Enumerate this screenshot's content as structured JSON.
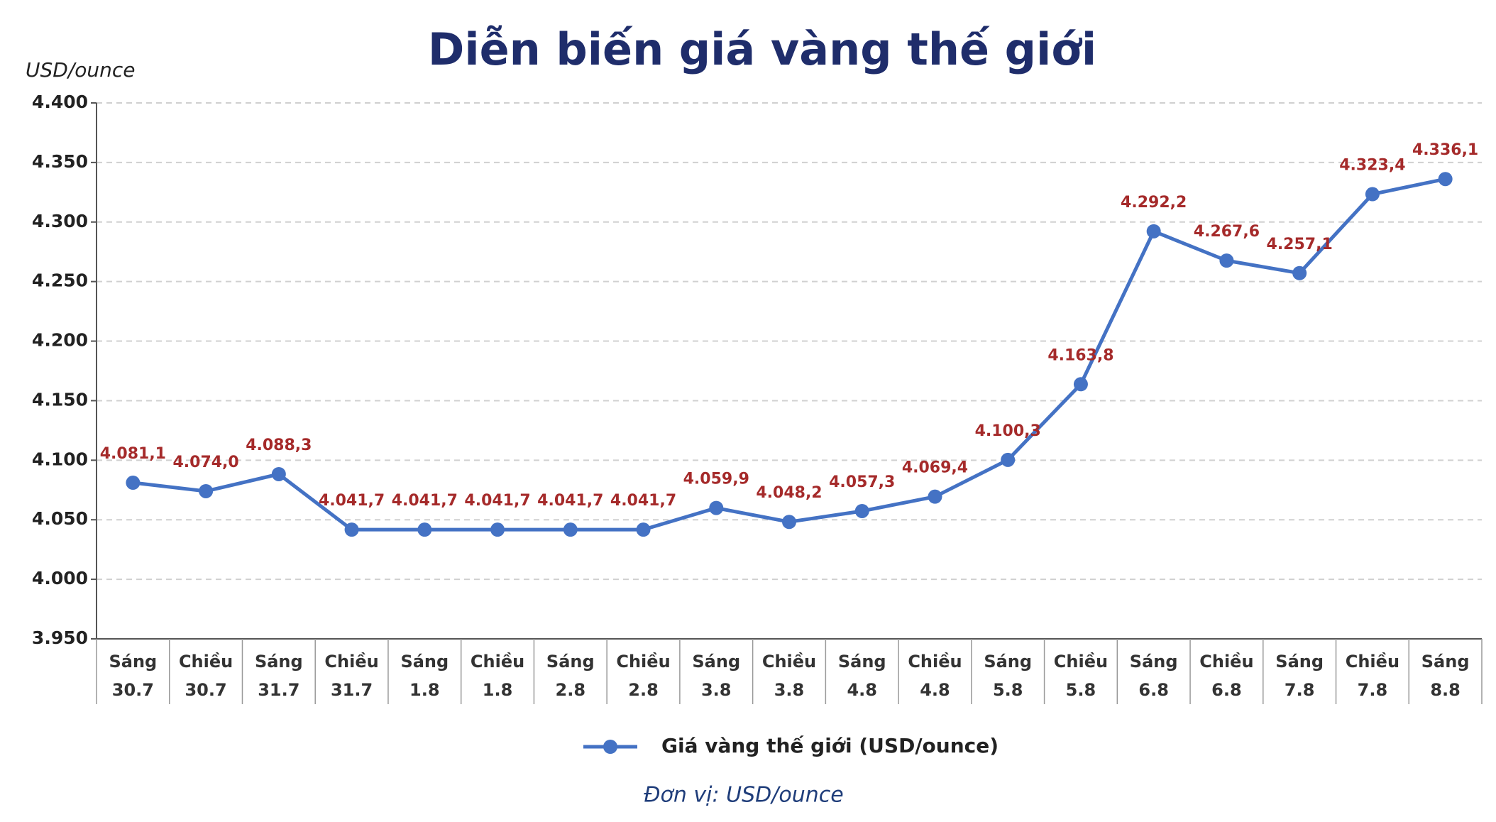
{
  "chart_data": {
    "type": "line",
    "title": "Diễn biến giá vàng thế giới",
    "y_label": "USD/ounce",
    "footnote": "Đơn vị: USD/ounce",
    "categories": [
      "Sáng\n30.7",
      "Chiều\n30.7",
      "Sáng\n31.7",
      "Chiều\n31.7",
      "Sáng\n1.8",
      "Chiều\n1.8",
      "Sáng\n2.8",
      "Chiều\n2.8",
      "Sáng\n3.8",
      "Chiều\n3.8",
      "Sáng\n4.8",
      "Chiều\n4.8",
      "Sáng\n5.8",
      "Chiều\n5.8",
      "Sáng\n6.8",
      "Chiều\n6.8",
      "Sáng\n7.8",
      "Chiều\n7.8",
      "Sáng\n8.8"
    ],
    "series": [
      {
        "name": "Giá vàng thế giới (USD/ounce)",
        "color": "#4472c4",
        "values": [
          4081.1,
          4074.0,
          4088.3,
          4041.7,
          4041.7,
          4041.7,
          4041.7,
          4041.7,
          4059.9,
          4048.2,
          4057.3,
          4069.4,
          4100.3,
          4163.8,
          4292.2,
          4267.6,
          4257.1,
          4323.4,
          4336.1
        ],
        "value_labels": [
          "4.081,1",
          "4.074,0",
          "4.088,3",
          "4.041,7",
          "4.041,7",
          "4.041,7",
          "4.041,7",
          "4.041,7",
          "4.059,9",
          "4.048,2",
          "4.057,3",
          "4.069,4",
          "4.100,3",
          "4.163,8",
          "4.292,2",
          "4.267,6",
          "4.257,1",
          "4.323,4",
          "4.336,1"
        ]
      }
    ],
    "ylim": [
      3950,
      4400
    ],
    "yticks": [
      {
        "value": 3950,
        "label": "3.950"
      },
      {
        "value": 4000,
        "label": "4.000"
      },
      {
        "value": 4050,
        "label": "4.050"
      },
      {
        "value": 4100,
        "label": "4.100"
      },
      {
        "value": 4150,
        "label": "4.150"
      },
      {
        "value": 4200,
        "label": "4.200"
      },
      {
        "value": 4250,
        "label": "4.250"
      },
      {
        "value": 4300,
        "label": "4.300"
      },
      {
        "value": 4350,
        "label": "4.350"
      },
      {
        "value": 4400,
        "label": "4.400"
      }
    ],
    "grid": true,
    "legend": "bottom"
  }
}
